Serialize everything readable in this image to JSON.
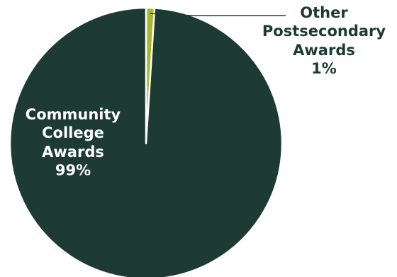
{
  "chart_data": {
    "type": "pie",
    "title": "",
    "slices": [
      {
        "label_lines": [
          "Community",
          "College",
          "Awards",
          "99%"
        ],
        "name": "Community College Awards",
        "value": 99,
        "color": "#1d3a33"
      },
      {
        "label_lines": [
          "Other",
          "Postsecondary",
          "Awards",
          "1%"
        ],
        "name": "Other Postsecondary Awards",
        "value": 1,
        "color": "#a8b828"
      }
    ],
    "separator_color": "#ffffff",
    "leader_line_color": "#1d3a33"
  }
}
